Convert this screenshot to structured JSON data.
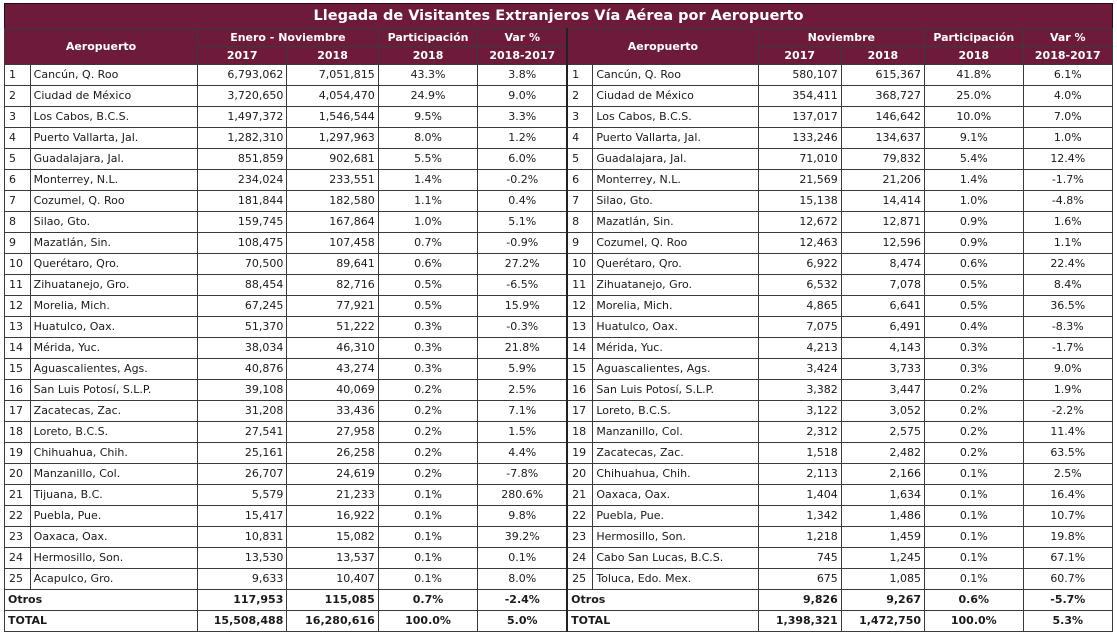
{
  "title": "Llegada de Visitantes Extranjeros Vía Aérea por Aeropuerto",
  "left": {
    "airport_header": "Aeropuerto",
    "period_header": "Enero - Noviembre",
    "year1": "2017",
    "year2": "2018",
    "share_header": "Participación",
    "share_year": "2018",
    "var_header": "Var %",
    "var_years": "2018-2017",
    "rows": [
      {
        "n": "1",
        "name": "Cancún, Q. Roo",
        "y1": "6,793,062",
        "y2": "7,051,815",
        "share": "43.3%",
        "var": "3.8%"
      },
      {
        "n": "2",
        "name": "Ciudad de México",
        "y1": "3,720,650",
        "y2": "4,054,470",
        "share": "24.9%",
        "var": "9.0%"
      },
      {
        "n": "3",
        "name": "Los Cabos, B.C.S.",
        "y1": "1,497,372",
        "y2": "1,546,544",
        "share": "9.5%",
        "var": "3.3%"
      },
      {
        "n": "4",
        "name": "Puerto Vallarta, Jal.",
        "y1": "1,282,310",
        "y2": "1,297,963",
        "share": "8.0%",
        "var": "1.2%"
      },
      {
        "n": "5",
        "name": "Guadalajara, Jal.",
        "y1": "851,859",
        "y2": "902,681",
        "share": "5.5%",
        "var": "6.0%"
      },
      {
        "n": "6",
        "name": "Monterrey, N.L.",
        "y1": "234,024",
        "y2": "233,551",
        "share": "1.4%",
        "var": "-0.2%"
      },
      {
        "n": "7",
        "name": "Cozumel, Q. Roo",
        "y1": "181,844",
        "y2": "182,580",
        "share": "1.1%",
        "var": "0.4%"
      },
      {
        "n": "8",
        "name": "Silao, Gto.",
        "y1": "159,745",
        "y2": "167,864",
        "share": "1.0%",
        "var": "5.1%"
      },
      {
        "n": "9",
        "name": "Mazatlán, Sin.",
        "y1": "108,475",
        "y2": "107,458",
        "share": "0.7%",
        "var": "-0.9%"
      },
      {
        "n": "10",
        "name": "Querétaro, Qro.",
        "y1": "70,500",
        "y2": "89,641",
        "share": "0.6%",
        "var": "27.2%"
      },
      {
        "n": "11",
        "name": "Zihuatanejo, Gro.",
        "y1": "88,454",
        "y2": "82,716",
        "share": "0.5%",
        "var": "-6.5%"
      },
      {
        "n": "12",
        "name": "Morelia, Mich.",
        "y1": "67,245",
        "y2": "77,921",
        "share": "0.5%",
        "var": "15.9%"
      },
      {
        "n": "13",
        "name": "Huatulco, Oax.",
        "y1": "51,370",
        "y2": "51,222",
        "share": "0.3%",
        "var": "-0.3%"
      },
      {
        "n": "14",
        "name": "Mérida, Yuc.",
        "y1": "38,034",
        "y2": "46,310",
        "share": "0.3%",
        "var": "21.8%"
      },
      {
        "n": "15",
        "name": "Aguascalientes, Ags.",
        "y1": "40,876",
        "y2": "43,274",
        "share": "0.3%",
        "var": "5.9%"
      },
      {
        "n": "16",
        "name": "San Luis Potosí, S.L.P.",
        "y1": "39,108",
        "y2": "40,069",
        "share": "0.2%",
        "var": "2.5%"
      },
      {
        "n": "17",
        "name": "Zacatecas, Zac.",
        "y1": "31,208",
        "y2": "33,436",
        "share": "0.2%",
        "var": "7.1%"
      },
      {
        "n": "18",
        "name": "Loreto, B.C.S.",
        "y1": "27,541",
        "y2": "27,958",
        "share": "0.2%",
        "var": "1.5%"
      },
      {
        "n": "19",
        "name": "Chihuahua, Chih.",
        "y1": "25,161",
        "y2": "26,258",
        "share": "0.2%",
        "var": "4.4%"
      },
      {
        "n": "20",
        "name": "Manzanillo, Col.",
        "y1": "26,707",
        "y2": "24,619",
        "share": "0.2%",
        "var": "-7.8%"
      },
      {
        "n": "21",
        "name": "Tijuana, B.C.",
        "y1": "5,579",
        "y2": "21,233",
        "share": "0.1%",
        "var": "280.6%"
      },
      {
        "n": "22",
        "name": "Puebla, Pue.",
        "y1": "15,417",
        "y2": "16,922",
        "share": "0.1%",
        "var": "9.8%"
      },
      {
        "n": "23",
        "name": "Oaxaca, Oax.",
        "y1": "10,831",
        "y2": "15,082",
        "share": "0.1%",
        "var": "39.2%"
      },
      {
        "n": "24",
        "name": "Hermosillo, Son.",
        "y1": "13,530",
        "y2": "13,537",
        "share": "0.1%",
        "var": "0.1%"
      },
      {
        "n": "25",
        "name": "Acapulco, Gro.",
        "y1": "9,633",
        "y2": "10,407",
        "share": "0.1%",
        "var": "8.0%"
      }
    ],
    "otros": {
      "name": "Otros",
      "y1": "117,953",
      "y2": "115,085",
      "share": "0.7%",
      "var": "-2.4%"
    },
    "total": {
      "name": "TOTAL",
      "y1": "15,508,488",
      "y2": "16,280,616",
      "share": "100.0%",
      "var": "5.0%"
    }
  },
  "right": {
    "airport_header": "Aeropuerto",
    "period_header": "Noviembre",
    "year1": "2017",
    "year2": "2018",
    "share_header": "Participación",
    "share_year": "2018",
    "var_header": "Var %",
    "var_years": "2018-2017",
    "rows": [
      {
        "n": "1",
        "name": "Cancún, Q. Roo",
        "y1": "580,107",
        "y2": "615,367",
        "share": "41.8%",
        "var": "6.1%"
      },
      {
        "n": "2",
        "name": "Ciudad de México",
        "y1": "354,411",
        "y2": "368,727",
        "share": "25.0%",
        "var": "4.0%"
      },
      {
        "n": "3",
        "name": "Los Cabos, B.C.S.",
        "y1": "137,017",
        "y2": "146,642",
        "share": "10.0%",
        "var": "7.0%"
      },
      {
        "n": "4",
        "name": "Puerto Vallarta, Jal.",
        "y1": "133,246",
        "y2": "134,637",
        "share": "9.1%",
        "var": "1.0%"
      },
      {
        "n": "5",
        "name": "Guadalajara, Jal.",
        "y1": "71,010",
        "y2": "79,832",
        "share": "5.4%",
        "var": "12.4%"
      },
      {
        "n": "6",
        "name": "Monterrey, N.L.",
        "y1": "21,569",
        "y2": "21,206",
        "share": "1.4%",
        "var": "-1.7%"
      },
      {
        "n": "7",
        "name": "Silao, Gto.",
        "y1": "15,138",
        "y2": "14,414",
        "share": "1.0%",
        "var": "-4.8%"
      },
      {
        "n": "8",
        "name": "Mazatlán, Sin.",
        "y1": "12,672",
        "y2": "12,871",
        "share": "0.9%",
        "var": "1.6%"
      },
      {
        "n": "9",
        "name": "Cozumel, Q. Roo",
        "y1": "12,463",
        "y2": "12,596",
        "share": "0.9%",
        "var": "1.1%"
      },
      {
        "n": "10",
        "name": "Querétaro, Qro.",
        "y1": "6,922",
        "y2": "8,474",
        "share": "0.6%",
        "var": "22.4%"
      },
      {
        "n": "11",
        "name": "Zihuatanejo, Gro.",
        "y1": "6,532",
        "y2": "7,078",
        "share": "0.5%",
        "var": "8.4%"
      },
      {
        "n": "12",
        "name": "Morelia, Mich.",
        "y1": "4,865",
        "y2": "6,641",
        "share": "0.5%",
        "var": "36.5%"
      },
      {
        "n": "13",
        "name": "Huatulco, Oax.",
        "y1": "7,075",
        "y2": "6,491",
        "share": "0.4%",
        "var": "-8.3%"
      },
      {
        "n": "14",
        "name": "Mérida, Yuc.",
        "y1": "4,213",
        "y2": "4,143",
        "share": "0.3%",
        "var": "-1.7%"
      },
      {
        "n": "15",
        "name": "Aguascalientes, Ags.",
        "y1": "3,424",
        "y2": "3,733",
        "share": "0.3%",
        "var": "9.0%"
      },
      {
        "n": "16",
        "name": "San Luis Potosí, S.L.P.",
        "y1": "3,382",
        "y2": "3,447",
        "share": "0.2%",
        "var": "1.9%"
      },
      {
        "n": "17",
        "name": "Loreto, B.C.S.",
        "y1": "3,122",
        "y2": "3,052",
        "share": "0.2%",
        "var": "-2.2%"
      },
      {
        "n": "18",
        "name": "Manzanillo, Col.",
        "y1": "2,312",
        "y2": "2,575",
        "share": "0.2%",
        "var": "11.4%"
      },
      {
        "n": "19",
        "name": "Zacatecas, Zac.",
        "y1": "1,518",
        "y2": "2,482",
        "share": "0.2%",
        "var": "63.5%"
      },
      {
        "n": "20",
        "name": "Chihuahua, Chih.",
        "y1": "2,113",
        "y2": "2,166",
        "share": "0.1%",
        "var": "2.5%"
      },
      {
        "n": "21",
        "name": "Oaxaca, Oax.",
        "y1": "1,404",
        "y2": "1,634",
        "share": "0.1%",
        "var": "16.4%"
      },
      {
        "n": "22",
        "name": "Puebla, Pue.",
        "y1": "1,342",
        "y2": "1,486",
        "share": "0.1%",
        "var": "10.7%"
      },
      {
        "n": "23",
        "name": "Hermosillo, Son.",
        "y1": "1,218",
        "y2": "1,459",
        "share": "0.1%",
        "var": "19.8%"
      },
      {
        "n": "24",
        "name": "Cabo San Lucas, B.C.S.",
        "y1": "745",
        "y2": "1,245",
        "share": "0.1%",
        "var": "67.1%"
      },
      {
        "n": "25",
        "name": "Toluca, Edo. Mex.",
        "y1": "675",
        "y2": "1,085",
        "share": "0.1%",
        "var": "60.7%"
      }
    ],
    "otros": {
      "name": "Otros",
      "y1": "9,826",
      "y2": "9,267",
      "share": "0.6%",
      "var": "-5.7%"
    },
    "total": {
      "name": "TOTAL",
      "y1": "1,398,321",
      "y2": "1,472,750",
      "share": "100.0%",
      "var": "5.3%"
    }
  }
}
